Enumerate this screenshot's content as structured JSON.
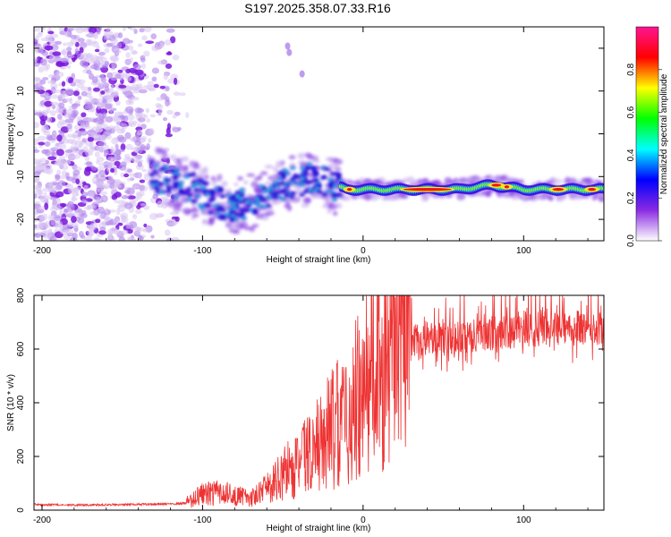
{
  "title": "S197.2025.358.07.33.R16",
  "chart_data": [
    {
      "type": "heatmap",
      "name": "spectrogram",
      "xlabel": "Height of straight line (km)",
      "ylabel": "Frequency (Hz)",
      "xlim": [
        -205,
        150
      ],
      "ylim": [
        -25,
        25
      ],
      "x_ticks": [
        -200,
        -100,
        0,
        100
      ],
      "y_ticks": [
        20,
        10,
        0,
        -10,
        -20
      ],
      "colorbar": {
        "label": "Normalized spectral amplitude",
        "range": [
          0,
          1
        ],
        "ticks": [
          "0.0",
          "0.2",
          "0.4",
          "0.6",
          "0.8"
        ],
        "colors": [
          "#ffffff",
          "#8a2be2",
          "#0000ff",
          "#00ffff",
          "#00ff00",
          "#ffff00",
          "#ff0000",
          "#ff1493"
        ]
      },
      "signal_track": {
        "x": [
          -130,
          -120,
          -110,
          -100,
          -90,
          -80,
          -70,
          -60,
          -50,
          -40,
          -30,
          -20,
          -10,
          0,
          10,
          20,
          40,
          60,
          80,
          100,
          120,
          150
        ],
        "frequency_hz": [
          -10,
          -11,
          -12,
          -14,
          -16,
          -17,
          -16,
          -14,
          -12,
          -11,
          -10,
          -12,
          -13,
          -13,
          -13,
          -13,
          -13,
          -13,
          -12,
          -13,
          -13,
          -13
        ]
      },
      "noise_region_x": [
        -205,
        -115
      ]
    },
    {
      "type": "line",
      "name": "snr",
      "xlabel": "Height of straight line (km)",
      "ylabel": "SNR (10 * v/v)",
      "xlim": [
        -205,
        150
      ],
      "ylim": [
        0,
        800
      ],
      "x_ticks": [
        -200,
        -100,
        0,
        100
      ],
      "y_ticks": [
        0,
        200,
        400,
        600,
        800
      ],
      "color": "#ee3333",
      "trend": {
        "x": [
          -205,
          -180,
          -150,
          -120,
          -110,
          -100,
          -90,
          -80,
          -70,
          -60,
          -50,
          -40,
          -30,
          -20,
          -10,
          0,
          10,
          20,
          30,
          50,
          80,
          100,
          120,
          150
        ],
        "y": [
          20,
          18,
          20,
          22,
          25,
          50,
          55,
          45,
          40,
          65,
          120,
          150,
          200,
          250,
          300,
          380,
          440,
          550,
          600,
          620,
          640,
          650,
          660,
          660
        ]
      }
    }
  ]
}
